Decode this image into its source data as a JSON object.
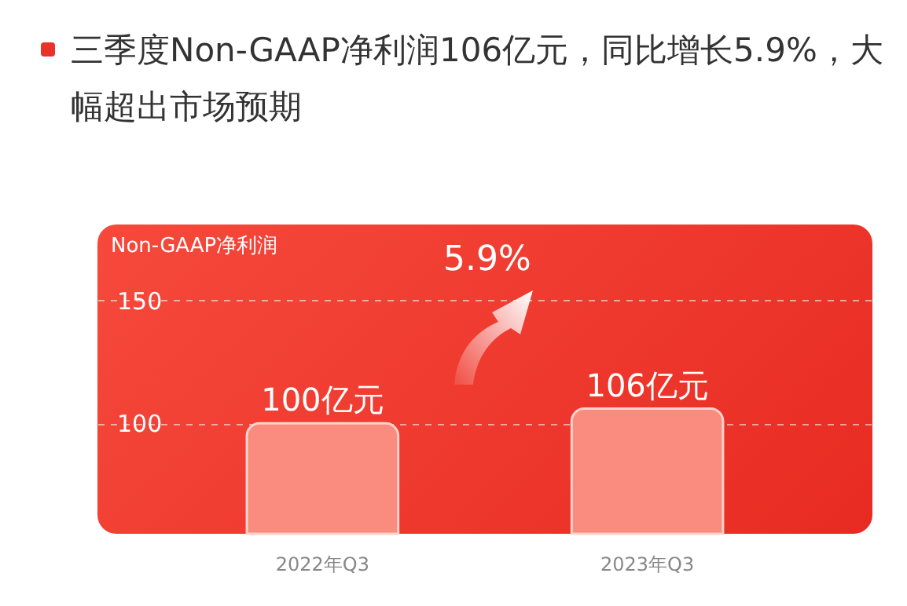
{
  "chart_data": {
    "type": "bar",
    "title": "三季度Non-GAAP净利润106亿元，同比增长5.9%，大幅超出市场预期",
    "ylabel": "Non-GAAP净利润",
    "categories": [
      "2022年Q3",
      "2023年Q3"
    ],
    "values": [
      100,
      106
    ],
    "value_labels": [
      "100亿元",
      "106亿元"
    ],
    "color": "#f98b7f",
    "ylim": [
      55,
      181
    ],
    "yticks": [
      100,
      150
    ],
    "grid": "y",
    "annotations": [
      "5.9%"
    ]
  }
}
